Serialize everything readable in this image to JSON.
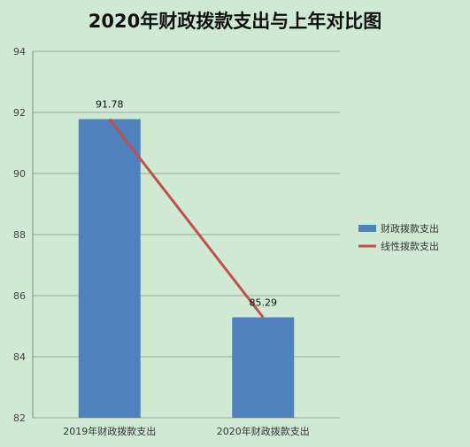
{
  "chart_data": {
    "type": "bar",
    "title": "2020年财政拨款支出与上年对比图",
    "categories": [
      "2019年财政拨款支出",
      "2020年财政拨款支出"
    ],
    "series": [
      {
        "name": "财政拨款支出",
        "type": "bar",
        "values": [
          91.78,
          85.29
        ],
        "color": "#4f81bd"
      },
      {
        "name": "线性拨款支出",
        "type": "line",
        "values": [
          91.78,
          85.29
        ],
        "color": "#c0504d"
      }
    ],
    "data_labels": [
      "91.78",
      "85.29"
    ],
    "ylim": [
      82,
      94
    ],
    "yticks": [
      82,
      84,
      86,
      88,
      90,
      92,
      94
    ],
    "grid": true,
    "legend_position": "right",
    "xlabel": "",
    "ylabel": ""
  }
}
